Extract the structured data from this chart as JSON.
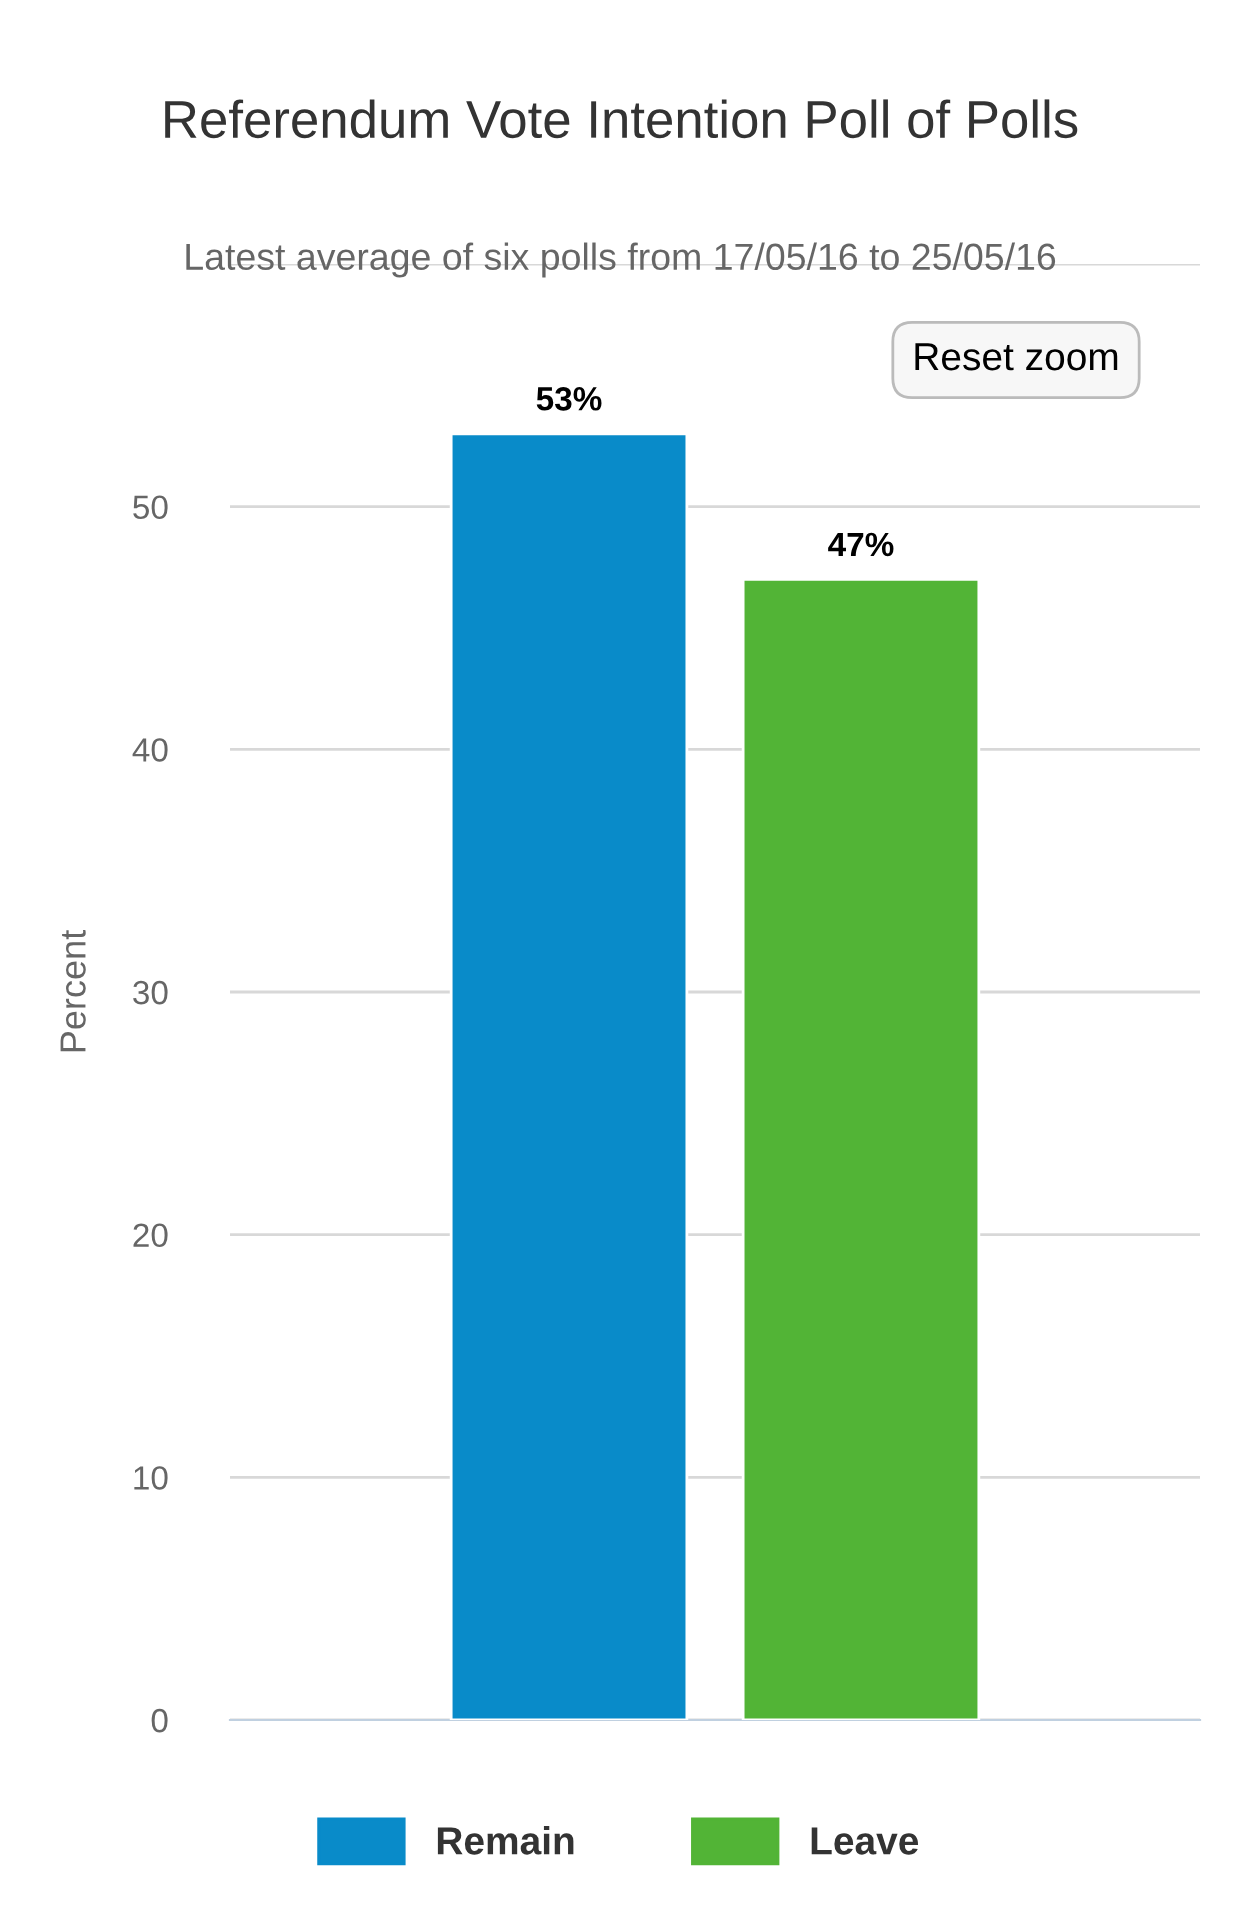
{
  "chart_data": {
    "type": "bar",
    "title": "Referendum Vote Intention Poll of Polls",
    "subtitle": "Latest average of six polls from 17/05/16 to 25/05/16",
    "ylabel": "Percent",
    "categories": [
      null
    ],
    "series": [
      {
        "name": "Remain",
        "color": "#098bc9",
        "values": [
          53
        ],
        "value_labels": [
          "53%"
        ]
      },
      {
        "name": "Leave",
        "color": "#52b436",
        "values": [
          47
        ],
        "value_labels": [
          "47%"
        ]
      }
    ],
    "ylim": [
      0,
      60
    ],
    "yticks": [
      0,
      10,
      20,
      30,
      40,
      50,
      {
        "value": 60,
        "label": null
      }
    ],
    "grid": "y",
    "legend": "bottom",
    "annotations": [
      "Reset zoom"
    ]
  }
}
